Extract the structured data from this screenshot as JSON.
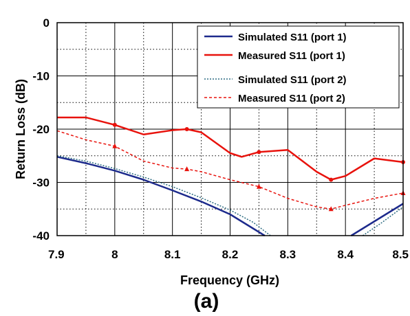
{
  "caption": "(a)",
  "chart_data": {
    "type": "line",
    "xlabel": "Frequency (GHz)",
    "ylabel": "Return Loss  (dB)",
    "xlim": [
      7.9,
      8.5
    ],
    "ylim": [
      -40,
      0
    ],
    "x_ticks": [
      7.9,
      8.0,
      8.1,
      8.2,
      8.3,
      8.4,
      8.5
    ],
    "x_tick_labels": [
      "7.9",
      "8",
      "8.1",
      "8.2",
      "8.3",
      "8.4",
      "8.5"
    ],
    "y_ticks": [
      0,
      -10,
      -20,
      -30,
      -40
    ],
    "y_tick_labels": [
      "0",
      "-10",
      "-20",
      "-30",
      "-40"
    ],
    "grid": {
      "major": true,
      "minor_dotted": true
    },
    "legend_position": "top-right",
    "series": [
      {
        "name": "Simulated S11 (port 1)",
        "color": "#1c2a8c",
        "style": "solid",
        "points": [
          [
            7.9,
            -25.2
          ],
          [
            7.95,
            -26.4
          ],
          [
            8.0,
            -27.8
          ],
          [
            8.05,
            -29.5
          ],
          [
            8.1,
            -31.5
          ],
          [
            8.15,
            -33.6
          ],
          [
            8.2,
            -36.0
          ],
          [
            8.23,
            -38.0
          ],
          [
            8.26,
            -40.0
          ]
        ]
      },
      {
        "name": "Measured S11 (port 1)",
        "color": "#e8120c",
        "style": "solid",
        "marker": "circle",
        "points": [
          [
            7.9,
            -17.8
          ],
          [
            7.95,
            -17.8
          ],
          [
            8.0,
            -19.2
          ],
          [
            8.05,
            -21.0
          ],
          [
            8.1,
            -20.2
          ],
          [
            8.125,
            -20.0
          ],
          [
            8.15,
            -20.6
          ],
          [
            8.2,
            -24.5
          ],
          [
            8.22,
            -25.2
          ],
          [
            8.25,
            -24.3
          ],
          [
            8.3,
            -23.9
          ],
          [
            8.35,
            -28.0
          ],
          [
            8.375,
            -29.5
          ],
          [
            8.4,
            -28.8
          ],
          [
            8.45,
            -25.5
          ],
          [
            8.5,
            -26.2
          ]
        ],
        "marked_points": [
          [
            8.0,
            -19.2
          ],
          [
            8.125,
            -20.0
          ],
          [
            8.25,
            -24.3
          ],
          [
            8.375,
            -29.5
          ],
          [
            8.5,
            -26.2
          ]
        ]
      },
      {
        "name": "Simulated S11 (port 2)",
        "color": "#2a6a80",
        "style": "dotted",
        "points": [
          [
            7.9,
            -25.0
          ],
          [
            7.95,
            -26.0
          ],
          [
            8.0,
            -27.4
          ],
          [
            8.05,
            -29.0
          ],
          [
            8.1,
            -30.8
          ],
          [
            8.15,
            -32.9
          ],
          [
            8.2,
            -35.2
          ],
          [
            8.24,
            -37.5
          ],
          [
            8.27,
            -40.0
          ]
        ]
      },
      {
        "name": "Measured S11 (port 2)",
        "color": "#e8120c",
        "style": "dashed",
        "marker": "triangle",
        "points": [
          [
            7.9,
            -20.3
          ],
          [
            7.95,
            -22.0
          ],
          [
            8.0,
            -23.2
          ],
          [
            8.05,
            -26.0
          ],
          [
            8.1,
            -27.3
          ],
          [
            8.125,
            -27.5
          ],
          [
            8.15,
            -28.0
          ],
          [
            8.2,
            -29.5
          ],
          [
            8.25,
            -30.8
          ],
          [
            8.3,
            -33.0
          ],
          [
            8.35,
            -34.6
          ],
          [
            8.375,
            -35.0
          ],
          [
            8.4,
            -34.3
          ],
          [
            8.45,
            -33.0
          ],
          [
            8.5,
            -32.0
          ]
        ],
        "marked_points": [
          [
            8.0,
            -23.2
          ],
          [
            8.125,
            -27.5
          ],
          [
            8.25,
            -30.8
          ],
          [
            8.375,
            -35.0
          ],
          [
            8.5,
            -32.0
          ]
        ]
      },
      {
        "name": "",
        "color": "#1c2a8c",
        "style": "solid",
        "points": [
          [
            8.41,
            -40.0
          ],
          [
            8.44,
            -38.0
          ],
          [
            8.47,
            -36.0
          ],
          [
            8.5,
            -34.0
          ]
        ]
      },
      {
        "name": "",
        "color": "#2a6a80",
        "style": "dotted",
        "points": [
          [
            8.43,
            -40.0
          ],
          [
            8.46,
            -37.8
          ],
          [
            8.5,
            -34.6
          ]
        ]
      }
    ]
  }
}
